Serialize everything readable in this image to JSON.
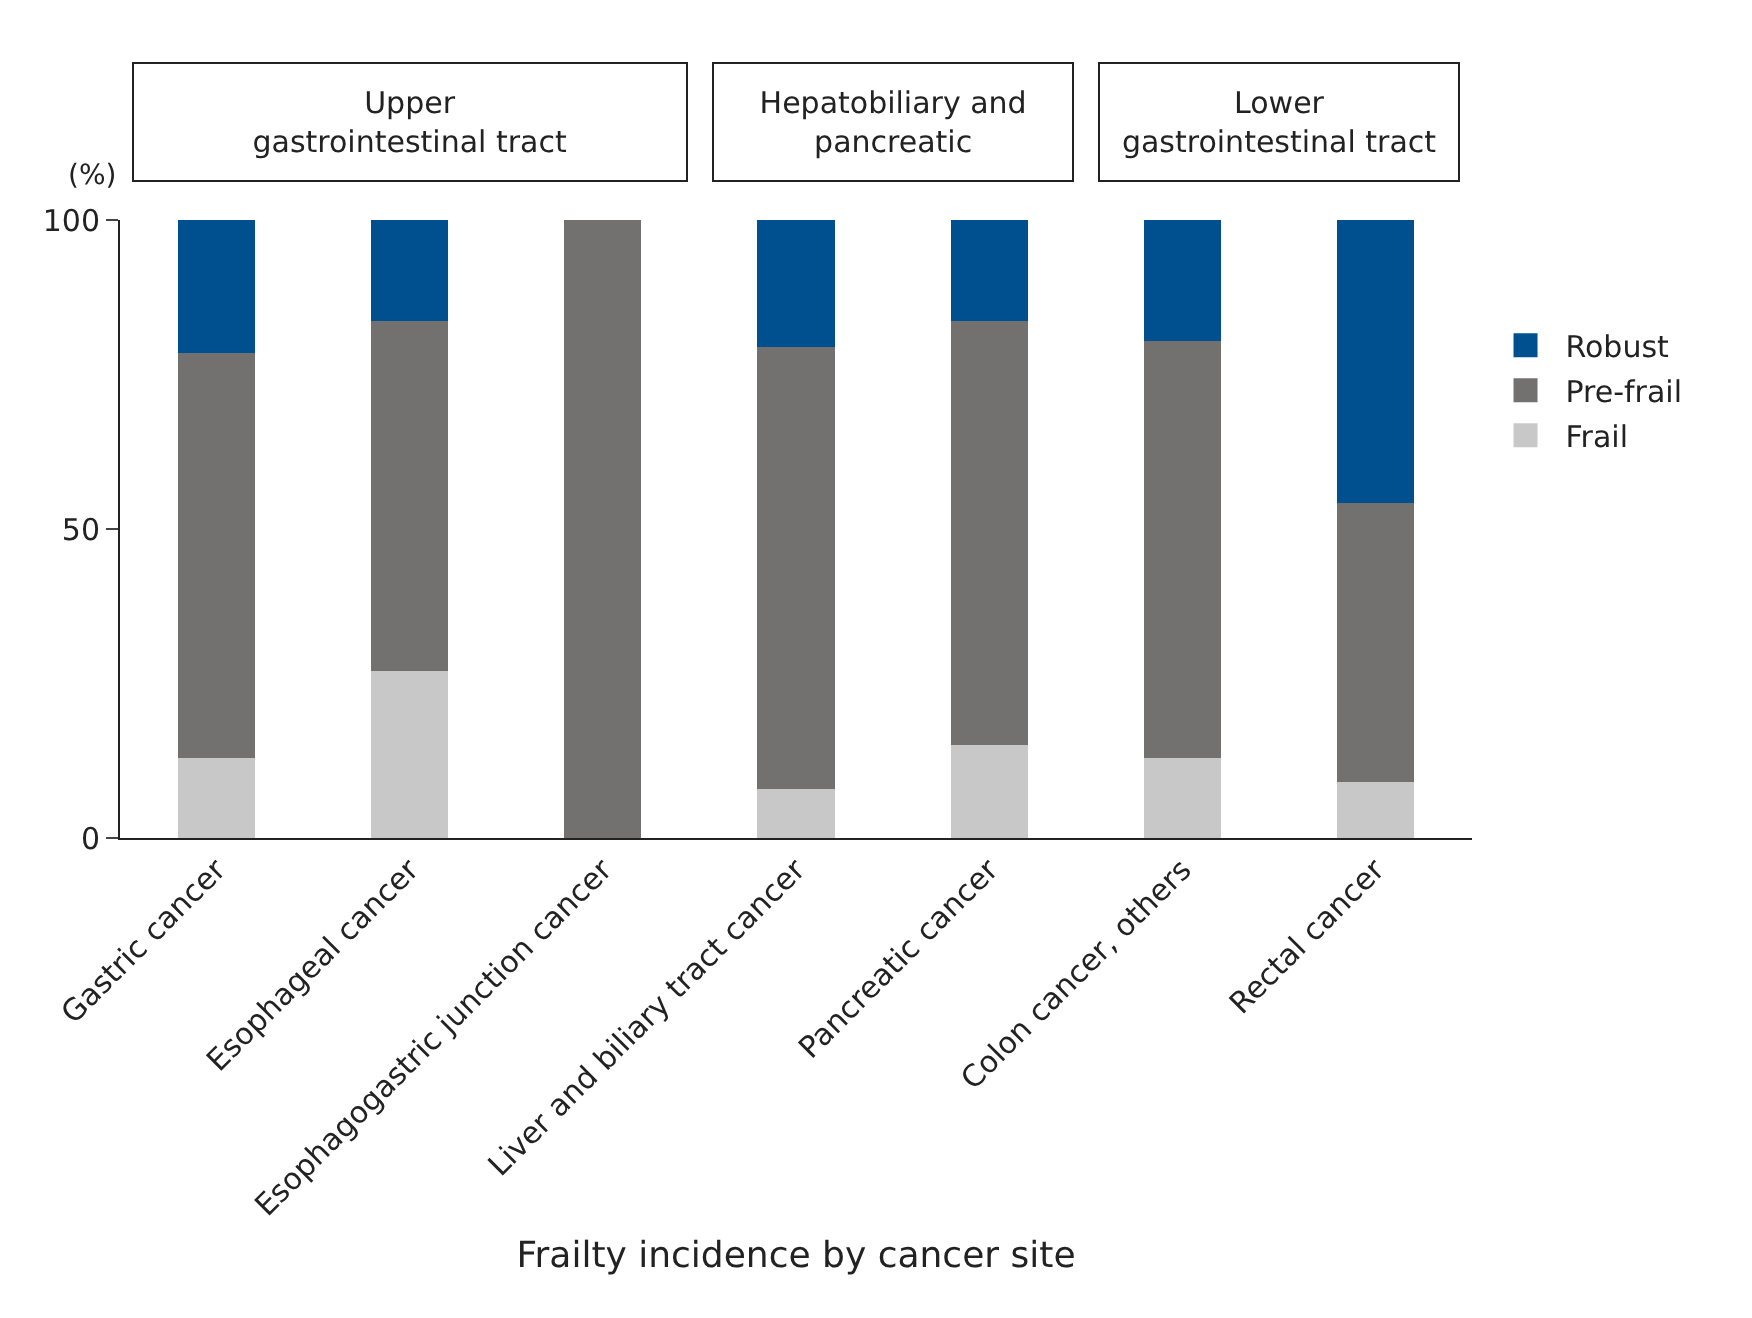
{
  "chart_data": {
    "type": "bar",
    "stacked": true,
    "categories": [
      "Gastric cancer",
      "Esophageal cancer",
      "Esophagogastric junction cancer",
      "Liver and biliary tract cancer",
      "Pancreatic cancer",
      "Colon cancer, others",
      "Rectal cancer"
    ],
    "series": [
      {
        "name": "Frail",
        "color": "#c8c8c8",
        "values": [
          13,
          27,
          0,
          8,
          15,
          13,
          9
        ]
      },
      {
        "name": "Pre-frail",
        "color": "#737170",
        "values": [
          65.5,
          56.7,
          100,
          71.5,
          68.7,
          67.4,
          45.2
        ]
      },
      {
        "name": "Robust",
        "color": "#00508f",
        "values": [
          21.5,
          16.3,
          0,
          20.5,
          16.3,
          19.6,
          45.8
        ]
      }
    ],
    "ylim": [
      0,
      100
    ],
    "yticks": [
      0,
      50,
      100
    ],
    "ylabel": "(%)",
    "xlabel": "Frailty incidence by cancer site",
    "annotations": [
      "Upper\ngastrointestinal tract",
      "Hepatobiliary and\npancreatic",
      "Lower\ngastrointestinal tract"
    ],
    "legend": "right"
  }
}
